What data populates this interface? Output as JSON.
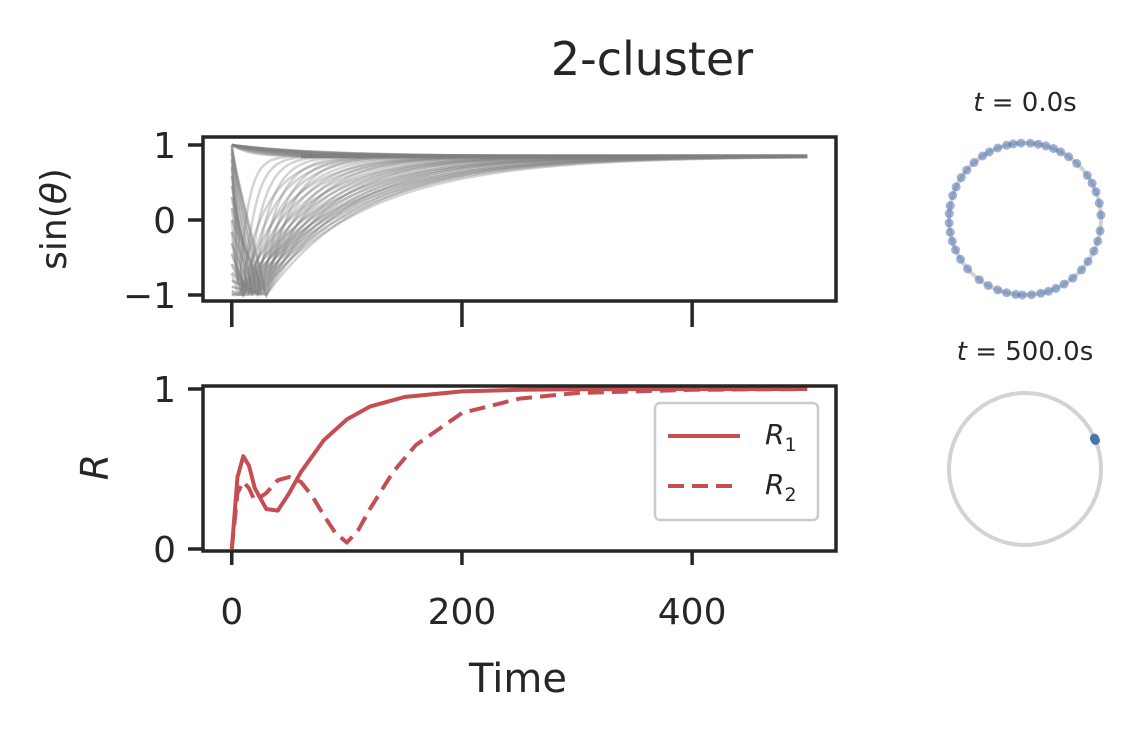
{
  "figure": {
    "title": "2-cluster"
  },
  "chart_data": [
    {
      "type": "line",
      "panel": "phase-sine",
      "ylabel": "sin(θ)",
      "xlabel": "",
      "xlim": [
        -25,
        525
      ],
      "ylim": [
        -1.1,
        1.1
      ],
      "xticks": [
        0,
        200,
        400
      ],
      "yticks": [
        1,
        0,
        -1
      ],
      "ytick_labels": [
        "1",
        "0",
        "−1"
      ],
      "xtick_labels_shown": false,
      "series_description": "many oscillator traces of sin(theta) converging to a common value",
      "converged_value": 0.85,
      "x_end": 500,
      "n_traces": 40,
      "color": "#808080"
    },
    {
      "type": "line",
      "panel": "order-parameter",
      "xlabel": "Time",
      "ylabel": "R",
      "xlim": [
        -25,
        525
      ],
      "ylim": [
        0,
        1
      ],
      "xticks": [
        0,
        200,
        400
      ],
      "xtick_labels": [
        "0",
        "200",
        "400"
      ],
      "yticks": [
        1,
        0
      ],
      "ytick_labels": [
        "1",
        "0"
      ],
      "legend": {
        "position": "center-right"
      },
      "series": [
        {
          "name": "R1",
          "style": "solid",
          "color": "#c44e52",
          "x": [
            0,
            5,
            10,
            15,
            20,
            30,
            40,
            50,
            60,
            80,
            100,
            120,
            150,
            200,
            250,
            300,
            400,
            500
          ],
          "y": [
            0.0,
            0.45,
            0.58,
            0.52,
            0.38,
            0.25,
            0.24,
            0.35,
            0.48,
            0.68,
            0.81,
            0.89,
            0.95,
            0.985,
            0.995,
            0.998,
            1.0,
            1.0
          ]
        },
        {
          "name": "R2",
          "style": "dashed",
          "color": "#c44e52",
          "x": [
            0,
            5,
            10,
            15,
            20,
            30,
            40,
            50,
            60,
            70,
            80,
            90,
            100,
            110,
            120,
            140,
            160,
            200,
            250,
            300,
            400,
            500
          ],
          "y": [
            0.0,
            0.35,
            0.42,
            0.38,
            0.3,
            0.35,
            0.43,
            0.45,
            0.42,
            0.33,
            0.21,
            0.1,
            0.04,
            0.12,
            0.25,
            0.48,
            0.65,
            0.85,
            0.94,
            0.975,
            0.995,
            1.0
          ]
        }
      ]
    },
    {
      "type": "scatter",
      "panel": "phase-circle-start",
      "title": "t = 0.0s",
      "description": "oscillator phases spread uniformly around the unit circle",
      "phases_deg": [
        3,
        12,
        21,
        28,
        35,
        47,
        55,
        62,
        68,
        74,
        80,
        86,
        93,
        99,
        104,
        111,
        118,
        124,
        132,
        140,
        147,
        155,
        162,
        170,
        176,
        183,
        190,
        197,
        204,
        212,
        221,
        233,
        241,
        249,
        256,
        263,
        268,
        275,
        282,
        288,
        294,
        301,
        309,
        318,
        326,
        335,
        343,
        351
      ],
      "color": "#4c72b0"
    },
    {
      "type": "scatter",
      "panel": "phase-circle-end",
      "title": "t = 500.0s",
      "description": "all oscillator phases collapsed to one point",
      "phases_deg": [
        22,
        23,
        24,
        22.5,
        23.5
      ],
      "color": "#4c72b0"
    }
  ]
}
